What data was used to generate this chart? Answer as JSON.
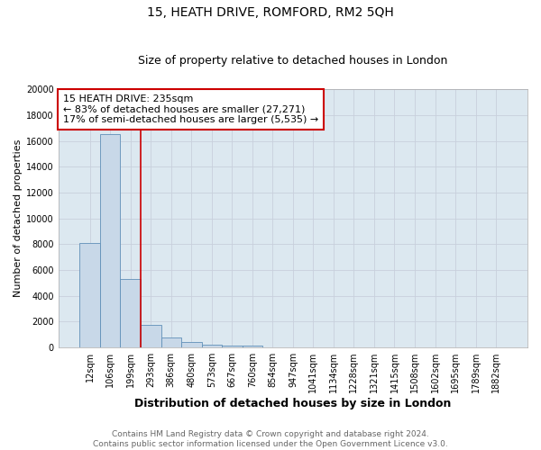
{
  "title": "15, HEATH DRIVE, ROMFORD, RM2 5QH",
  "subtitle": "Size of property relative to detached houses in London",
  "xlabel": "Distribution of detached houses by size in London",
  "ylabel": "Number of detached properties",
  "footer_line1": "Contains HM Land Registry data © Crown copyright and database right 2024.",
  "footer_line2": "Contains public sector information licensed under the Open Government Licence v3.0.",
  "annotation_line1": "15 HEATH DRIVE: 235sqm",
  "annotation_line2": "← 83% of detached houses are smaller (27,271)",
  "annotation_line3": "17% of semi-detached houses are larger (5,535) →",
  "bar_categories": [
    "12sqm",
    "106sqm",
    "199sqm",
    "293sqm",
    "386sqm",
    "480sqm",
    "573sqm",
    "667sqm",
    "760sqm",
    "854sqm",
    "947sqm",
    "1041sqm",
    "1134sqm",
    "1228sqm",
    "1321sqm",
    "1415sqm",
    "1508sqm",
    "1602sqm",
    "1695sqm",
    "1789sqm",
    "1882sqm"
  ],
  "bar_values": [
    8100,
    16500,
    5300,
    1750,
    800,
    390,
    220,
    150,
    130,
    0,
    0,
    0,
    0,
    0,
    0,
    0,
    0,
    0,
    0,
    0,
    0
  ],
  "bar_color": "#c8d8e8",
  "bar_edge_color": "#6090b8",
  "vline_color": "#cc0000",
  "vline_x": 2.5,
  "annotation_box_color": "#cc0000",
  "ylim": [
    0,
    20000
  ],
  "yticks": [
    0,
    2000,
    4000,
    6000,
    8000,
    10000,
    12000,
    14000,
    16000,
    18000,
    20000
  ],
  "grid_color": "#c8d0dc",
  "background_color": "#dce8f0",
  "title_fontsize": 10,
  "subtitle_fontsize": 9,
  "xlabel_fontsize": 9,
  "ylabel_fontsize": 8,
  "tick_fontsize": 7,
  "annotation_fontsize": 8,
  "footer_fontsize": 6.5
}
